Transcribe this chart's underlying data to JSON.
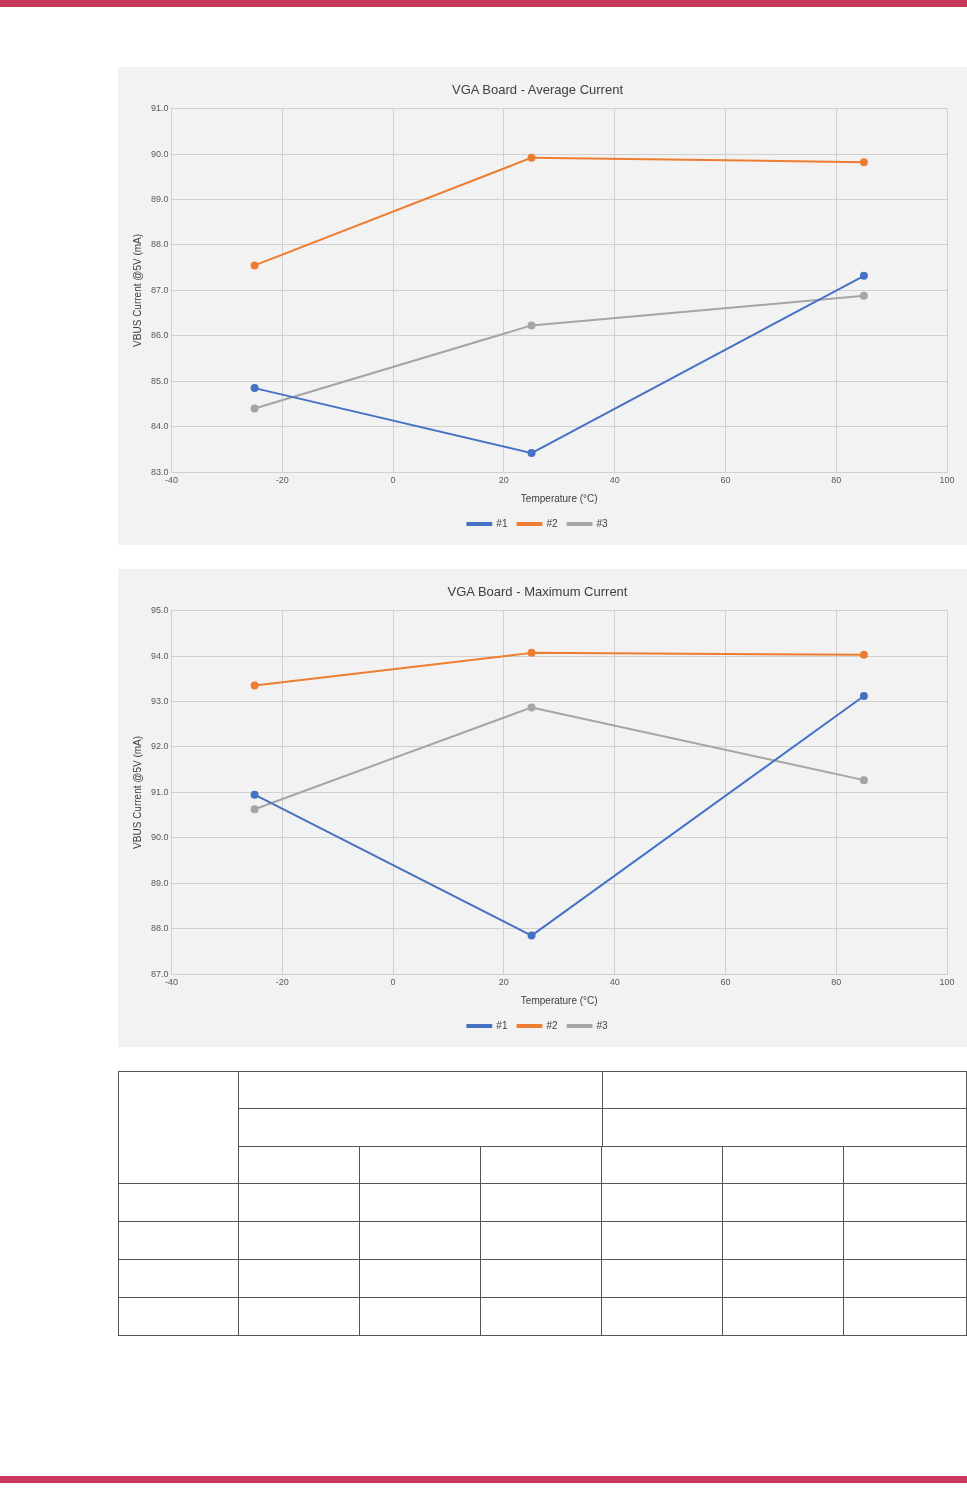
{
  "chart_data": [
    {
      "type": "line",
      "title": "VGA Board - Average Current",
      "xlabel": "Temperature (°C)",
      "ylabel": "VBUS Current @5V (mA)",
      "xlim": [
        -40,
        100
      ],
      "xticks": [
        -40,
        -20,
        0,
        20,
        40,
        60,
        80,
        100
      ],
      "ylim": [
        83,
        91
      ],
      "yticks": [
        {
          "value": 83,
          "label": "83.0"
        },
        {
          "value": 84,
          "label": "84.0"
        },
        {
          "value": 85,
          "label": "85.0"
        },
        {
          "value": 86,
          "label": "86.0"
        },
        {
          "value": 87,
          "label": "87.0"
        },
        {
          "value": 88,
          "label": "88.0"
        },
        {
          "value": 89,
          "label": "89.0"
        },
        {
          "value": 90,
          "label": "90.0"
        },
        {
          "value": 91,
          "label": "91.0"
        }
      ],
      "grid": true,
      "legend": "bottom",
      "marker": "circle",
      "line_style": "solid",
      "x": [
        -25,
        25,
        85
      ],
      "series": [
        {
          "name": "#1",
          "color": "#4472c4",
          "values": [
            84.85,
            83.42,
            87.32
          ]
        },
        {
          "name": "#2",
          "color": "#ed7d31",
          "values": [
            87.55,
            89.92,
            89.82
          ]
        },
        {
          "name": "#3",
          "color": "#a5a5a5",
          "values": [
            84.4,
            86.23,
            86.88
          ]
        }
      ]
    },
    {
      "type": "line",
      "title": "VGA Board - Maximum Current",
      "xlabel": "Temperature (°C)",
      "ylabel": "VBUS Current @5V (mA)",
      "xlim": [
        -40,
        100
      ],
      "xticks": [
        -40,
        -20,
        0,
        20,
        40,
        60,
        80,
        100
      ],
      "ylim": [
        87,
        95
      ],
      "yticks": [
        {
          "value": 87,
          "label": "87.0"
        },
        {
          "value": 88,
          "label": "88.0"
        },
        {
          "value": 89,
          "label": "89.0"
        },
        {
          "value": 90,
          "label": "90.0"
        },
        {
          "value": 91,
          "label": "91.0"
        },
        {
          "value": 92,
          "label": "92.0"
        },
        {
          "value": 93,
          "label": "93.0"
        },
        {
          "value": 94,
          "label": "94.0"
        },
        {
          "value": 95,
          "label": "95.0"
        }
      ],
      "grid": true,
      "legend": "bottom",
      "marker": "circle",
      "line_style": "solid",
      "x": [
        -25,
        25,
        85
      ],
      "series": [
        {
          "name": "#1",
          "color": "#4472c4",
          "values": [
            90.95,
            87.85,
            93.12
          ]
        },
        {
          "name": "#2",
          "color": "#ed7d31",
          "values": [
            93.35,
            94.07,
            94.03
          ]
        },
        {
          "name": "#3",
          "color": "#a5a5a5",
          "values": [
            90.63,
            92.87,
            91.27
          ]
        }
      ]
    }
  ]
}
